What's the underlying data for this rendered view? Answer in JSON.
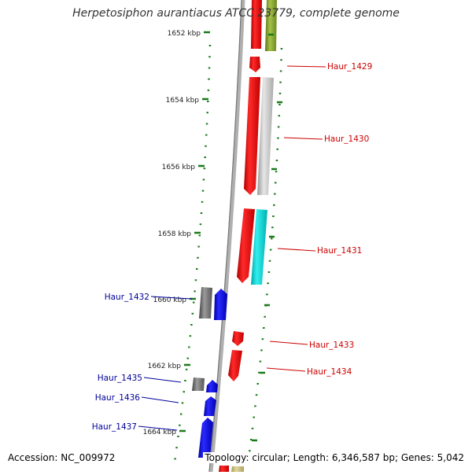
{
  "title": "Herpetosiphon aurantiacus ATCC 23779, complete genome",
  "accession": "Accession: NC_009972",
  "summary": "Topology: circular; Length: 6,346,587 bp; Genes: 5,042",
  "ticks": [
    {
      "label": "1652 kbp"
    },
    {
      "label": "1654 kbp"
    },
    {
      "label": "1656 kbp"
    },
    {
      "label": "1658 kbp"
    },
    {
      "label": "1660 kbp"
    },
    {
      "label": "1662 kbp"
    },
    {
      "label": "1664 kbp"
    }
  ],
  "genes": [
    {
      "label": "Haur_1429",
      "color": "#cc0000"
    },
    {
      "label": "Haur_1430",
      "color": "#cc0000"
    },
    {
      "label": "Haur_1431",
      "color": "#cc0000"
    },
    {
      "label": "Haur_1433",
      "color": "#cc0000"
    },
    {
      "label": "Haur_1434",
      "color": "#cc0000"
    },
    {
      "label": "Haur_1432",
      "color": "#00009a"
    },
    {
      "label": "Haur_1435",
      "color": "#00009a"
    },
    {
      "label": "Haur_1436",
      "color": "#00009a"
    },
    {
      "label": "Haur_1437",
      "color": "#00009a"
    }
  ],
  "colors": {
    "backbone": "#8a8a8a",
    "tick_dash": "#1a7a1a",
    "forward_strand": "#ff0000",
    "reverse_strand": "#0000ff",
    "rna": "#00cccc",
    "gray_feature": "#9a9a9a",
    "olive_feature": "#7a9a2a"
  }
}
